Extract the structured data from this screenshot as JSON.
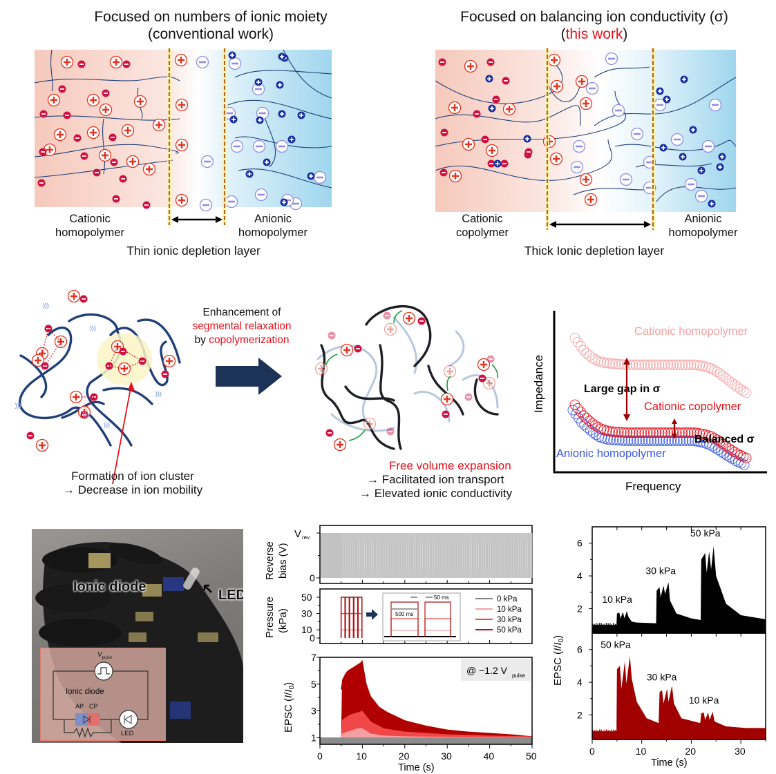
{
  "top_left": {
    "title_line1": "Focused on numbers of ionic moiety",
    "title_line2": "(conventional work)",
    "left_label_line1": "Cationic",
    "left_label_line2": "homopolymer",
    "right_label_line1": "Anionic",
    "right_label_line2": "homopolymer",
    "caption": "Thin ionic depletion layer"
  },
  "top_right": {
    "title_line1": "Focused on balancing ion conductivity (σ)",
    "title_line2_open": "(",
    "title_line2_highlight": "this work",
    "title_line2_close": ")",
    "left_label_line1": "Cationic",
    "left_label_line2": "copolymer",
    "right_label_line1": "Anionic",
    "right_label_line2": "homopolymer",
    "caption": "Thick Ionic depletion layer"
  },
  "middle": {
    "arrow_text_line1": "Enhancement of",
    "arrow_text_line2": "segmental relaxation",
    "arrow_text_line3_prefix": "by ",
    "arrow_text_line3_highlight": "copolymerization",
    "left_caption_line1": "Formation of ion cluster",
    "left_caption_line2": "→ Decrease in ion mobility",
    "right_caption_line1": "Free volume expansion",
    "right_caption_line2": "→ Facilitated ion transport",
    "right_caption_line3": "→ Elevated ionic conductivity"
  },
  "colors": {
    "cation_red": "#e8321e",
    "anion_crimson": "#d01040",
    "anion_lavender": "#8e8ee6",
    "counter_cation_blue": "#1a2fa0",
    "polymer_navy": "#1f3f7a",
    "arrow_navy": "#1c3357",
    "cationic_bg": "#f6c9bc",
    "anionic_bg": "#9fd6ee",
    "depletion_line": "#b5651d",
    "highlight_red": "#e8101a",
    "dark_red": "#a00000"
  },
  "chart_data": [
    {
      "id": "impedance-schematic",
      "type": "scatter",
      "title": "",
      "xlabel": "Frequency",
      "ylabel": "Impedance",
      "grid": false,
      "axis_ticks": false,
      "series": [
        {
          "name": "Cationic homopolymer",
          "color": "#f4a0a0",
          "x": [
            0,
            0.05,
            0.1,
            0.15,
            0.2,
            0.3,
            0.4,
            0.5,
            0.6,
            0.7,
            0.75,
            0.8,
            0.85,
            0.9,
            0.95,
            1.0
          ],
          "y": [
            0.95,
            0.86,
            0.8,
            0.77,
            0.76,
            0.75,
            0.75,
            0.75,
            0.75,
            0.75,
            0.74,
            0.72,
            0.68,
            0.63,
            0.58,
            0.54
          ]
        },
        {
          "name": "Cationic copolymer",
          "color": "#e8101a",
          "x": [
            0,
            0.05,
            0.1,
            0.15,
            0.2,
            0.3,
            0.4,
            0.5,
            0.6,
            0.7,
            0.75,
            0.8,
            0.85,
            0.9,
            0.95,
            1.0
          ],
          "y": [
            0.45,
            0.37,
            0.31,
            0.27,
            0.25,
            0.24,
            0.24,
            0.24,
            0.24,
            0.24,
            0.23,
            0.21,
            0.17,
            0.12,
            0.08,
            0.05
          ]
        },
        {
          "name": "Anionic homopolymer",
          "color": "#3a5ae0",
          "x": [
            0,
            0.05,
            0.1,
            0.15,
            0.2,
            0.3,
            0.4,
            0.5,
            0.6,
            0.7,
            0.75,
            0.8,
            0.85,
            0.9,
            0.95,
            1.0
          ],
          "y": [
            0.42,
            0.33,
            0.27,
            0.22,
            0.2,
            0.19,
            0.19,
            0.19,
            0.19,
            0.19,
            0.18,
            0.16,
            0.12,
            0.08,
            0.04,
            0.01
          ]
        }
      ],
      "annotations": [
        "Large gap in σ",
        "Balanced σ"
      ],
      "legend": [
        "Cationic homopolymer",
        "Cationic copolymer",
        "Anionic homopolymer"
      ]
    },
    {
      "id": "reverse-bias",
      "type": "area",
      "ylabel_line1": "Reverse",
      "ylabel_line2": "bias (V)",
      "y_tick_labels": [
        "0",
        "V"
      ],
      "y_tick_sub": "rev.",
      "xlim": [
        0,
        50
      ],
      "ylim": [
        0,
        1
      ],
      "color": "#c0c0c0",
      "description": "Reverse bias held at V_rev for t<5 s, then pulsed between 0 and V_rev for t≥5 s"
    },
    {
      "id": "pressure",
      "type": "line",
      "ylabel_line1": "Pressure",
      "ylabel_line2": "(kPa)",
      "y_ticks": [
        0,
        10,
        30,
        50
      ],
      "xlim": [
        0,
        50
      ],
      "ylim": [
        0,
        55
      ],
      "pulse_window": [
        5,
        10
      ],
      "inset_labels": {
        "pulse_width": "500 ms",
        "gap": "50 ms"
      },
      "legend": [
        {
          "name": "0 kPa",
          "color": "#808080"
        },
        {
          "name": "10 kPa",
          "color": "#f4a0a0"
        },
        {
          "name": "30 kPa",
          "color": "#f04848"
        },
        {
          "name": "50 kPa",
          "color": "#b01010"
        }
      ]
    },
    {
      "id": "epsc-time",
      "type": "area",
      "ylabel": "EPSC (I/I₀)",
      "xlabel": "Time (s)",
      "xlim": [
        0,
        50
      ],
      "ylim": [
        0.5,
        7
      ],
      "x_ticks": [
        0,
        10,
        20,
        30,
        40,
        50
      ],
      "y_ticks": [
        1,
        3,
        5,
        7
      ],
      "annotation": "@ −1.2 V",
      "annotation_sub": "pulse",
      "series": [
        {
          "name": "0 kPa",
          "color": "#8c8c8c",
          "x": [
            0,
            50
          ],
          "y": [
            1.0,
            1.0
          ]
        },
        {
          "name": "10 kPa",
          "color": "#f4a0a0",
          "x": [
            0,
            5,
            5.2,
            6,
            7,
            8,
            9,
            10,
            12,
            15,
            20,
            30,
            40,
            50
          ],
          "y": [
            1,
            1,
            1.3,
            1.4,
            1.5,
            1.6,
            1.7,
            1.7,
            1.3,
            1.15,
            1.1,
            1.05,
            1.02,
            1.0
          ]
        },
        {
          "name": "30 kPa",
          "color": "#f04848",
          "x": [
            0,
            5,
            5.2,
            6,
            7,
            8,
            9,
            10,
            12,
            15,
            20,
            30,
            40,
            50
          ],
          "y": [
            1,
            1,
            2.3,
            2.5,
            2.7,
            2.8,
            2.9,
            3.0,
            2.2,
            1.7,
            1.45,
            1.25,
            1.15,
            1.1
          ]
        },
        {
          "name": "50 kPa",
          "color": "#b00000",
          "x": [
            0,
            5,
            5.2,
            5.5,
            6,
            6.5,
            7,
            7.5,
            8,
            8.5,
            9,
            9.5,
            10,
            11,
            12,
            14,
            16,
            18,
            20,
            25,
            30,
            35,
            40,
            45,
            50
          ],
          "y": [
            1,
            1,
            5.3,
            5.5,
            5.8,
            6.0,
            6.1,
            6.2,
            6.3,
            6.4,
            6.5,
            6.6,
            6.8,
            5.0,
            4.1,
            3.3,
            2.9,
            2.6,
            2.3,
            1.9,
            1.6,
            1.45,
            1.35,
            1.25,
            1.1
          ]
        }
      ]
    },
    {
      "id": "epsc-increasing",
      "type": "area",
      "ylabel": "EPSC (I/I₀)",
      "xlim": [
        0,
        35
      ],
      "ylim": [
        0.5,
        7
      ],
      "y_ticks": [
        2,
        4,
        6
      ],
      "color": "#000000",
      "annotations": [
        "10 kPa",
        "30 kPa",
        "50 kPa"
      ],
      "x": [
        0,
        4.9,
        5.0,
        5.5,
        5.7,
        6.2,
        6.5,
        7.0,
        7.3,
        8.0,
        9,
        12.9,
        13.0,
        13.6,
        13.8,
        14.4,
        14.7,
        15.4,
        15.7,
        17,
        20,
        21.9,
        22.0,
        22.8,
        23.1,
        23.6,
        24.0,
        24.5,
        25,
        27,
        30,
        35
      ],
      "y": [
        1.0,
        1.0,
        1.7,
        1.75,
        1.4,
        1.8,
        1.4,
        1.85,
        1.5,
        1.2,
        1.15,
        1.1,
        3.1,
        3.3,
        2.7,
        3.4,
        2.9,
        3.6,
        2.5,
        1.7,
        1.4,
        1.3,
        5.0,
        5.4,
        4.2,
        5.5,
        4.4,
        5.8,
        4.0,
        2.3,
        1.6,
        1.35
      ]
    },
    {
      "id": "epsc-decreasing",
      "type": "area",
      "ylabel": "EPSC (I/I₀)",
      "xlabel": "Time (s)",
      "xlim": [
        0,
        35
      ],
      "ylim": [
        0.5,
        7
      ],
      "x_ticks": [
        0,
        10,
        20,
        30
      ],
      "y_ticks": [
        2,
        4,
        6
      ],
      "color": "#a00000",
      "annotations": [
        "50 kPa",
        "30 kPa",
        "10 kPa"
      ],
      "x": [
        0,
        4.9,
        5.0,
        5.6,
        5.9,
        6.6,
        6.9,
        7.6,
        8.0,
        9,
        11,
        13.4,
        13.6,
        14.1,
        14.4,
        15.1,
        15.4,
        16.1,
        16.5,
        18,
        21.8,
        22.0,
        22.5,
        22.8,
        23.4,
        23.7,
        24.3,
        24.7,
        27,
        31,
        35
      ],
      "y": [
        1.0,
        1.0,
        4.8,
        5.0,
        3.6,
        5.3,
        3.9,
        5.6,
        4.2,
        2.8,
        1.8,
        1.5,
        3.4,
        3.5,
        2.7,
        3.6,
        2.8,
        3.8,
        2.7,
        1.8,
        1.5,
        2.1,
        2.15,
        1.7,
        2.15,
        1.7,
        2.2,
        1.6,
        1.3,
        1.2,
        1.2
      ]
    }
  ],
  "photo": {
    "label_diode": "Ionic diode",
    "label_led": "LED",
    "inset_vpulse_main": "V",
    "inset_vpulse_sub": "pulse",
    "inset_diode_label": "Ionic diode",
    "inset_ap": "AP",
    "inset_cp": "CP",
    "inset_led": "LED"
  }
}
